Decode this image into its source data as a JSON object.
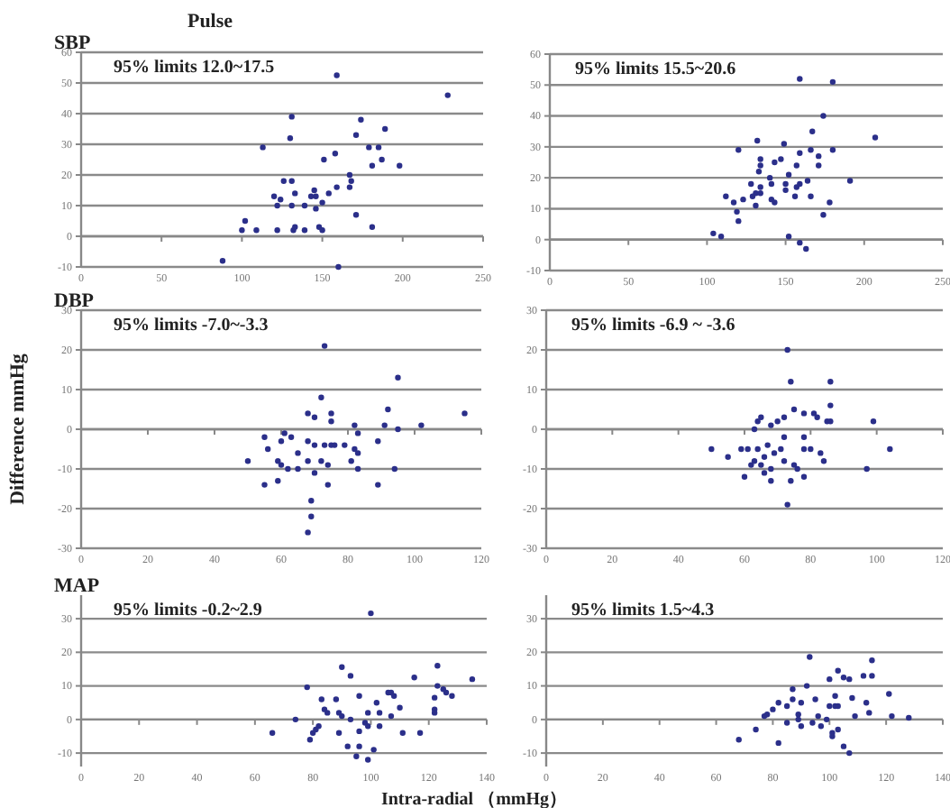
{
  "chart_data": [
    {
      "type": "scatter",
      "subtitle": "SBP",
      "title": "Pulse",
      "color": "#2b2f8a",
      "marker": "circle",
      "grid": "y",
      "xlim": [
        0,
        250
      ],
      "xticks": [
        0,
        50,
        100,
        150,
        200,
        250
      ],
      "ylim": [
        -10,
        60
      ],
      "yticks": [
        -10,
        0,
        10,
        20,
        30,
        40,
        50,
        60
      ],
      "annotations": [
        "95% limits 12.0~17.5"
      ],
      "x": [
        159,
        228,
        131,
        174,
        189,
        171,
        130,
        113,
        158,
        179,
        185,
        151,
        187,
        198,
        181,
        167,
        168,
        126,
        131,
        154,
        159,
        167,
        145,
        146,
        143,
        120,
        124,
        122,
        133,
        139,
        131,
        150,
        146,
        102,
        100,
        109,
        122,
        132,
        133,
        139,
        148,
        150,
        171,
        181,
        88,
        160
      ],
      "values": [
        52.5,
        46,
        39,
        38,
        35,
        33,
        32,
        29,
        27,
        29,
        29,
        25,
        25,
        23,
        23,
        20,
        18,
        18,
        18,
        14,
        16,
        16,
        15,
        13,
        13,
        13,
        12,
        10,
        14,
        10,
        10,
        11,
        9,
        5,
        2,
        2,
        2,
        2,
        3,
        2,
        3,
        2,
        7,
        3,
        -8,
        -10
      ]
    },
    {
      "type": "scatter",
      "color": "#2b2f8a",
      "marker": "circle",
      "grid": "y",
      "xlim": [
        0,
        250
      ],
      "xticks": [
        0,
        50,
        100,
        150,
        200,
        250
      ],
      "ylim": [
        -10,
        60
      ],
      "yticks": [
        -10,
        0,
        10,
        20,
        30,
        40,
        50,
        60
      ],
      "annotations": [
        "95% limits 15.5~20.6"
      ],
      "x": [
        159,
        180,
        174,
        207,
        167,
        132,
        149,
        120,
        159,
        166,
        180,
        171,
        134,
        143,
        147,
        134,
        157,
        171,
        133,
        152,
        140,
        164,
        191,
        128,
        141,
        150,
        157,
        159,
        134,
        131,
        129,
        134,
        150,
        166,
        156,
        112,
        117,
        123,
        141,
        143,
        131,
        178,
        174,
        119,
        120,
        104,
        109,
        152,
        159,
        163
      ],
      "values": [
        52,
        51,
        40,
        33,
        35,
        32,
        31,
        29,
        28,
        29,
        29,
        27,
        26,
        25,
        26,
        24,
        24,
        24,
        22,
        21,
        20,
        19,
        19,
        18,
        18,
        18,
        17,
        18,
        17,
        15,
        14,
        15,
        16,
        14,
        14,
        14,
        12,
        13,
        13,
        12,
        11,
        12,
        8,
        9,
        6,
        2,
        1,
        1,
        -1,
        -3
      ]
    },
    {
      "type": "scatter",
      "subtitle": "DBP",
      "ylabel": "Difference  mmHg",
      "color": "#2b2f8a",
      "marker": "circle",
      "grid": "y",
      "xlim": [
        0,
        120
      ],
      "xticks": [
        0,
        20,
        40,
        60,
        80,
        100,
        120
      ],
      "ylim": [
        -30,
        30
      ],
      "yticks": [
        -30,
        -20,
        -10,
        0,
        10,
        20,
        30
      ],
      "annotations": [
        "95% limits -7.0~-3.3"
      ],
      "x": [
        73,
        95,
        72,
        68,
        70,
        75,
        75,
        92,
        115,
        102,
        91,
        95,
        82,
        83,
        61,
        63,
        55,
        56,
        60,
        68,
        70,
        73,
        75,
        76,
        79,
        82,
        83,
        89,
        65,
        50,
        59,
        60,
        62,
        65,
        68,
        72,
        74,
        70,
        81,
        83,
        94,
        55,
        59,
        74,
        89,
        69,
        69,
        68
      ],
      "values": [
        21,
        13,
        8,
        4,
        3,
        4,
        2,
        5,
        4,
        1,
        1,
        0,
        1,
        -1,
        -1,
        -2,
        -2,
        -5,
        -3,
        -3,
        -4,
        -4,
        -4,
        -4,
        -4,
        -5,
        -6,
        -3,
        -6,
        -8,
        -8,
        -9,
        -10,
        -10,
        -8,
        -8,
        -9,
        -11,
        -8,
        -10,
        -10,
        -14,
        -13,
        -14,
        -14,
        -18,
        -22,
        -26
      ]
    },
    {
      "type": "scatter",
      "color": "#2b2f8a",
      "marker": "circle",
      "grid": "y",
      "xlim": [
        0,
        120
      ],
      "xticks": [
        0,
        20,
        40,
        60,
        80,
        100,
        120
      ],
      "ylim": [
        -30,
        30
      ],
      "yticks": [
        -30,
        -20,
        -10,
        0,
        10,
        20,
        30
      ],
      "annotations": [
        "95% limits -6.9 ~ -3.6"
      ],
      "x": [
        73,
        74,
        86,
        86,
        75,
        78,
        81,
        82,
        72,
        70,
        65,
        64,
        68,
        63,
        85,
        86,
        99,
        78,
        78,
        72,
        71,
        50,
        59,
        61,
        64,
        67,
        69,
        80,
        83,
        84,
        104,
        55,
        63,
        66,
        65,
        66,
        68,
        72,
        75,
        76,
        60,
        68,
        74,
        78,
        97,
        62,
        73
      ],
      "values": [
        20,
        12,
        12,
        6,
        5,
        4,
        4,
        3,
        3,
        2,
        3,
        2,
        1,
        0,
        2,
        2,
        2,
        -2,
        -5,
        -2,
        -5,
        -5,
        -5,
        -5,
        -5,
        -4,
        -6,
        -5,
        -6,
        -8,
        -5,
        -7,
        -8,
        -7,
        -9,
        -11,
        -10,
        -8,
        -9,
        -10,
        -12,
        -13,
        -13,
        -12,
        -10,
        -9,
        -19
      ]
    },
    {
      "type": "scatter",
      "subtitle": "MAP",
      "color": "#2b2f8a",
      "marker": "circle",
      "grid": "y",
      "xlim": [
        0,
        140
      ],
      "xticks": [
        0,
        20,
        40,
        60,
        80,
        100,
        120,
        140
      ],
      "ylim": [
        -14,
        37
      ],
      "yticks": [
        -10,
        0,
        10,
        20,
        30
      ],
      "annotations": [
        "95% limits -0.2~2.9"
      ],
      "x": [
        100,
        90,
        93,
        123,
        115,
        135,
        123,
        78,
        126,
        128,
        125,
        106,
        107,
        108,
        96,
        102,
        83,
        88,
        122,
        122,
        122,
        84,
        85,
        89,
        90,
        93,
        99,
        103,
        107,
        110,
        98,
        74,
        66,
        82,
        81,
        80,
        79,
        89,
        96,
        99,
        103,
        111,
        117,
        92,
        96,
        95,
        101,
        99
      ],
      "values": [
        31.6,
        15.6,
        13,
        16,
        12.5,
        12,
        10,
        9.6,
        8,
        7,
        9,
        8,
        8,
        7,
        7,
        5,
        6,
        6,
        6.5,
        3,
        2,
        3,
        2,
        2,
        1,
        0,
        2,
        2,
        1,
        3.5,
        -1,
        0,
        -4,
        -2,
        -3,
        -4,
        -6,
        -4,
        -3.5,
        -2,
        -2,
        -4,
        -4,
        -8,
        -8,
        -11,
        -9,
        -12
      ]
    },
    {
      "type": "scatter",
      "xlabel": "Intra-radial （mmHg）",
      "color": "#2b2f8a",
      "marker": "circle",
      "grid": "y",
      "xlim": [
        0,
        140
      ],
      "xticks": [
        0,
        20,
        40,
        60,
        80,
        100,
        120,
        140
      ],
      "ylim": [
        -14,
        37
      ],
      "yticks": [
        -10,
        0,
        10,
        20,
        30
      ],
      "annotations": [
        "95% limits 1.5~4.3"
      ],
      "x": [
        93,
        115,
        103,
        105,
        107,
        112,
        115,
        100,
        92,
        87,
        121,
        102,
        108,
        87,
        90,
        95,
        100,
        102,
        103,
        113,
        82,
        85,
        80,
        78,
        77,
        89,
        89,
        96,
        99,
        109,
        114,
        122,
        128,
        74,
        85,
        90,
        94,
        97,
        101,
        103,
        105,
        107,
        68,
        82,
        101
      ],
      "values": [
        18.6,
        17.6,
        14.5,
        12.5,
        12,
        13,
        13,
        12,
        10,
        9,
        7.6,
        7,
        6.4,
        6,
        5,
        6,
        4,
        4,
        4,
        5,
        5,
        4,
        3,
        1.5,
        1,
        1.5,
        0,
        1,
        0,
        1,
        2,
        1,
        0.5,
        -3,
        -1,
        -2,
        -1,
        -2,
        -4,
        -3,
        -8,
        -10,
        -6,
        -7,
        -5
      ]
    }
  ]
}
